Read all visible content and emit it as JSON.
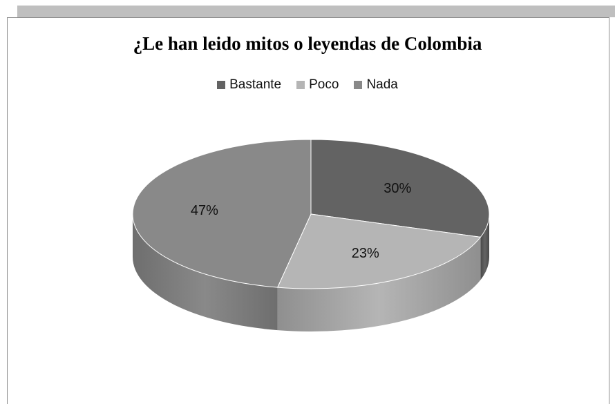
{
  "chart_data": {
    "type": "pie",
    "title": "¿Le han leido mitos o leyendas de Colombia",
    "legend_position": "top",
    "three_d": true,
    "series": [
      {
        "name": "Bastante",
        "value": 30,
        "label": "30%",
        "color": "#636363",
        "side_color": "#4a4a4a"
      },
      {
        "name": "Poco",
        "value": 23,
        "label": "23%",
        "color": "#b5b5b5",
        "side_color": "#8f8f8f"
      },
      {
        "name": "Nada",
        "value": 47,
        "label": "47%",
        "color": "#898989",
        "side_color": "#6e6e6e"
      }
    ]
  }
}
